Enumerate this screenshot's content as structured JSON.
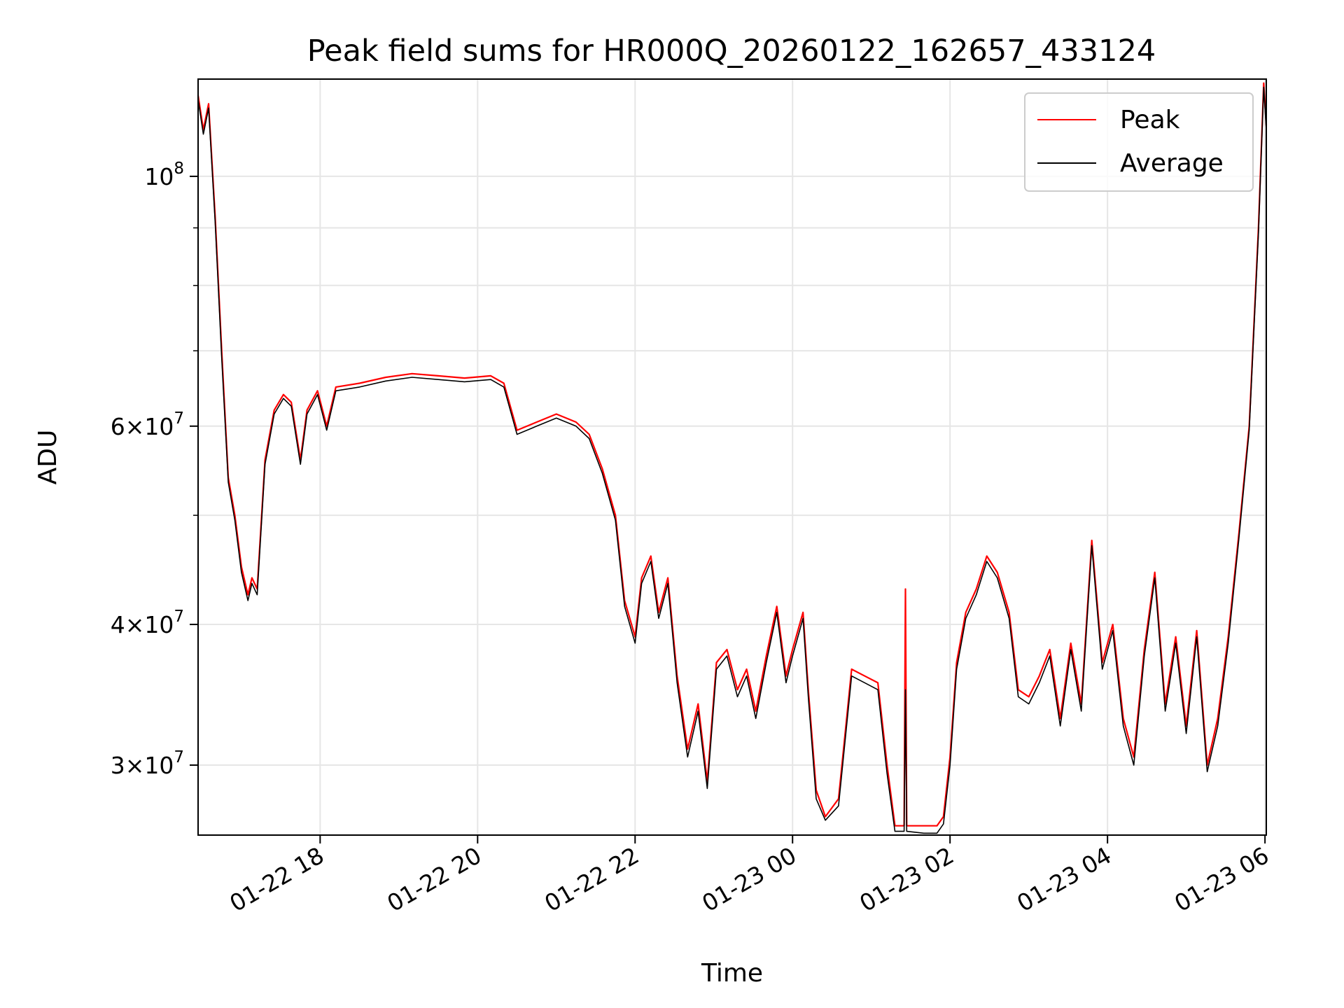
{
  "chart_data": {
    "type": "line",
    "title": "Peak field sums for HR000Q_20260122_162657_433124",
    "xlabel": "Time",
    "ylabel": "ADU",
    "y_scale": "log",
    "ylim": [
      26000000,
      122000000
    ],
    "xlim": [
      "2026-01-22 16:27",
      "2026-01-23 06:01"
    ],
    "grid": true,
    "legend_position": "top-right",
    "x_ticks": [
      {
        "value": "2026-01-22 18:00",
        "label": "01-22 18"
      },
      {
        "value": "2026-01-22 20:00",
        "label": "01-22 20"
      },
      {
        "value": "2026-01-22 22:00",
        "label": "01-22 22"
      },
      {
        "value": "2026-01-23 00:00",
        "label": "01-23 00"
      },
      {
        "value": "2026-01-23 02:00",
        "label": "01-23 02"
      },
      {
        "value": "2026-01-23 04:00",
        "label": "01-23 04"
      },
      {
        "value": "2026-01-23 06:00",
        "label": "01-23 06"
      }
    ],
    "y_major_ticks": [
      {
        "value": 100000000,
        "mantissa": "",
        "base": "10",
        "exponent": "8"
      },
      {
        "value": 60000000,
        "mantissa": "6",
        "base": "10",
        "exponent": "7"
      },
      {
        "value": 40000000,
        "mantissa": "4",
        "base": "10",
        "exponent": "7"
      },
      {
        "value": 30000000,
        "mantissa": "3",
        "base": "10",
        "exponent": "7"
      }
    ],
    "y_minor_ticks": [
      50000000,
      70000000,
      80000000,
      90000000
    ],
    "series": [
      {
        "name": "Peak",
        "color": "#ff0000",
        "points": [
          [
            "2026-01-22 16:27",
            118000000
          ],
          [
            "2026-01-22 16:31",
            110000000
          ],
          [
            "2026-01-22 16:35",
            116000000
          ],
          [
            "2026-01-22 16:40",
            92000000
          ],
          [
            "2026-01-22 16:45",
            70000000
          ],
          [
            "2026-01-22 16:50",
            54000000
          ],
          [
            "2026-01-22 16:55",
            50000000
          ],
          [
            "2026-01-22 17:00",
            45000000
          ],
          [
            "2026-01-22 17:05",
            42500000
          ],
          [
            "2026-01-22 17:08",
            44000000
          ],
          [
            "2026-01-22 17:12",
            43000000
          ],
          [
            "2026-01-22 17:18",
            56000000
          ],
          [
            "2026-01-22 17:25",
            62000000
          ],
          [
            "2026-01-22 17:32",
            64000000
          ],
          [
            "2026-01-22 17:38",
            63000000
          ],
          [
            "2026-01-22 17:45",
            56000000
          ],
          [
            "2026-01-22 17:50",
            62000000
          ],
          [
            "2026-01-22 17:58",
            64500000
          ],
          [
            "2026-01-22 18:05",
            60000000
          ],
          [
            "2026-01-22 18:12",
            65000000
          ],
          [
            "2026-01-22 18:30",
            65500000
          ],
          [
            "2026-01-22 18:50",
            66300000
          ],
          [
            "2026-01-22 19:10",
            66800000
          ],
          [
            "2026-01-22 19:30",
            66500000
          ],
          [
            "2026-01-22 19:50",
            66200000
          ],
          [
            "2026-01-22 20:10",
            66500000
          ],
          [
            "2026-01-22 20:20",
            65500000
          ],
          [
            "2026-01-22 20:30",
            59500000
          ],
          [
            "2026-01-22 20:45",
            60500000
          ],
          [
            "2026-01-22 21:00",
            61500000
          ],
          [
            "2026-01-22 21:15",
            60500000
          ],
          [
            "2026-01-22 21:25",
            59000000
          ],
          [
            "2026-01-22 21:35",
            55000000
          ],
          [
            "2026-01-22 21:45",
            50000000
          ],
          [
            "2026-01-22 21:52",
            42000000
          ],
          [
            "2026-01-22 22:00",
            39000000
          ],
          [
            "2026-01-22 22:05",
            44000000
          ],
          [
            "2026-01-22 22:12",
            46000000
          ],
          [
            "2026-01-22 22:18",
            41000000
          ],
          [
            "2026-01-22 22:25",
            44000000
          ],
          [
            "2026-01-22 22:32",
            36000000
          ],
          [
            "2026-01-22 22:40",
            31000000
          ],
          [
            "2026-01-22 22:48",
            34000000
          ],
          [
            "2026-01-22 22:55",
            29000000
          ],
          [
            "2026-01-22 23:02",
            37000000
          ],
          [
            "2026-01-22 23:10",
            38000000
          ],
          [
            "2026-01-22 23:18",
            35000000
          ],
          [
            "2026-01-22 23:25",
            36500000
          ],
          [
            "2026-01-22 23:32",
            33500000
          ],
          [
            "2026-01-22 23:40",
            37500000
          ],
          [
            "2026-01-22 23:48",
            41500000
          ],
          [
            "2026-01-22 23:55",
            36000000
          ],
          [
            "2026-01-23 00:00",
            38000000
          ],
          [
            "2026-01-23 00:08",
            41000000
          ],
          [
            "2026-01-23 00:12",
            35000000
          ],
          [
            "2026-01-23 00:18",
            28500000
          ],
          [
            "2026-01-23 00:25",
            27000000
          ],
          [
            "2026-01-23 00:35",
            28000000
          ],
          [
            "2026-01-23 00:45",
            36500000
          ],
          [
            "2026-01-23 00:55",
            36000000
          ],
          [
            "2026-01-23 01:05",
            35500000
          ],
          [
            "2026-01-23 01:12",
            30000000
          ],
          [
            "2026-01-23 01:18",
            26500000
          ],
          [
            "2026-01-23 01:25",
            26500000
          ],
          [
            "2026-01-23 01:26",
            43000000
          ],
          [
            "2026-01-23 01:27",
            26500000
          ],
          [
            "2026-01-23 01:40",
            26500000
          ],
          [
            "2026-01-23 01:50",
            26500000
          ],
          [
            "2026-01-23 01:55",
            27000000
          ],
          [
            "2026-01-23 02:00",
            30500000
          ],
          [
            "2026-01-23 02:05",
            37000000
          ],
          [
            "2026-01-23 02:12",
            41000000
          ],
          [
            "2026-01-23 02:20",
            43000000
          ],
          [
            "2026-01-23 02:28",
            46000000
          ],
          [
            "2026-01-23 02:36",
            44500000
          ],
          [
            "2026-01-23 02:45",
            41000000
          ],
          [
            "2026-01-23 02:52",
            35000000
          ],
          [
            "2026-01-23 03:00",
            34500000
          ],
          [
            "2026-01-23 03:08",
            36000000
          ],
          [
            "2026-01-23 03:16",
            38000000
          ],
          [
            "2026-01-23 03:24",
            33000000
          ],
          [
            "2026-01-23 03:32",
            38500000
          ],
          [
            "2026-01-23 03:40",
            34000000
          ],
          [
            "2026-01-23 03:48",
            47500000
          ],
          [
            "2026-01-23 03:56",
            37000000
          ],
          [
            "2026-01-23 04:04",
            40000000
          ],
          [
            "2026-01-23 04:12",
            33000000
          ],
          [
            "2026-01-23 04:20",
            30500000
          ],
          [
            "2026-01-23 04:28",
            38000000
          ],
          [
            "2026-01-23 04:36",
            44500000
          ],
          [
            "2026-01-23 04:44",
            34000000
          ],
          [
            "2026-01-23 04:52",
            39000000
          ],
          [
            "2026-01-23 05:00",
            32500000
          ],
          [
            "2026-01-23 05:08",
            39500000
          ],
          [
            "2026-01-23 05:16",
            30000000
          ],
          [
            "2026-01-23 05:24",
            33000000
          ],
          [
            "2026-01-23 05:32",
            39000000
          ],
          [
            "2026-01-23 05:40",
            48000000
          ],
          [
            "2026-01-23 05:48",
            60000000
          ],
          [
            "2026-01-23 05:55",
            90000000
          ],
          [
            "2026-01-23 05:59",
            121000000
          ],
          [
            "2026-01-23 06:01",
            111000000
          ]
        ]
      },
      {
        "name": "Average",
        "color": "#000000",
        "points": [
          [
            "2026-01-22 16:27",
            117000000
          ],
          [
            "2026-01-22 16:31",
            109000000
          ],
          [
            "2026-01-22 16:35",
            115000000
          ],
          [
            "2026-01-22 16:40",
            91000000
          ],
          [
            "2026-01-22 16:45",
            69000000
          ],
          [
            "2026-01-22 16:50",
            53500000
          ],
          [
            "2026-01-22 16:55",
            49500000
          ],
          [
            "2026-01-22 17:00",
            44500000
          ],
          [
            "2026-01-22 17:05",
            42000000
          ],
          [
            "2026-01-22 17:08",
            43500000
          ],
          [
            "2026-01-22 17:12",
            42500000
          ],
          [
            "2026-01-22 17:18",
            55500000
          ],
          [
            "2026-01-22 17:25",
            61500000
          ],
          [
            "2026-01-22 17:32",
            63500000
          ],
          [
            "2026-01-22 17:38",
            62500000
          ],
          [
            "2026-01-22 17:45",
            55500000
          ],
          [
            "2026-01-22 17:50",
            61500000
          ],
          [
            "2026-01-22 17:58",
            64000000
          ],
          [
            "2026-01-22 18:05",
            59500000
          ],
          [
            "2026-01-22 18:12",
            64500000
          ],
          [
            "2026-01-22 18:30",
            65000000
          ],
          [
            "2026-01-22 18:50",
            65800000
          ],
          [
            "2026-01-22 19:10",
            66300000
          ],
          [
            "2026-01-22 19:30",
            66000000
          ],
          [
            "2026-01-22 19:50",
            65700000
          ],
          [
            "2026-01-22 20:10",
            66000000
          ],
          [
            "2026-01-22 20:20",
            65000000
          ],
          [
            "2026-01-22 20:30",
            59000000
          ],
          [
            "2026-01-22 20:45",
            60000000
          ],
          [
            "2026-01-22 21:00",
            61000000
          ],
          [
            "2026-01-22 21:15",
            60000000
          ],
          [
            "2026-01-22 21:25",
            58500000
          ],
          [
            "2026-01-22 21:35",
            54500000
          ],
          [
            "2026-01-22 21:45",
            49500000
          ],
          [
            "2026-01-22 21:52",
            41500000
          ],
          [
            "2026-01-22 22:00",
            38500000
          ],
          [
            "2026-01-22 22:05",
            43500000
          ],
          [
            "2026-01-22 22:12",
            45500000
          ],
          [
            "2026-01-22 22:18",
            40500000
          ],
          [
            "2026-01-22 22:25",
            43500000
          ],
          [
            "2026-01-22 22:32",
            35500000
          ],
          [
            "2026-01-22 22:40",
            30500000
          ],
          [
            "2026-01-22 22:48",
            33500000
          ],
          [
            "2026-01-22 22:55",
            28600000
          ],
          [
            "2026-01-22 23:02",
            36500000
          ],
          [
            "2026-01-22 23:10",
            37500000
          ],
          [
            "2026-01-22 23:18",
            34500000
          ],
          [
            "2026-01-22 23:25",
            36000000
          ],
          [
            "2026-01-22 23:32",
            33000000
          ],
          [
            "2026-01-22 23:40",
            37000000
          ],
          [
            "2026-01-22 23:48",
            41000000
          ],
          [
            "2026-01-22 23:55",
            35500000
          ],
          [
            "2026-01-23 00:00",
            37500000
          ],
          [
            "2026-01-23 00:08",
            40500000
          ],
          [
            "2026-01-23 00:12",
            34500000
          ],
          [
            "2026-01-23 00:18",
            28000000
          ],
          [
            "2026-01-23 00:25",
            26800000
          ],
          [
            "2026-01-23 00:35",
            27600000
          ],
          [
            "2026-01-23 00:45",
            36000000
          ],
          [
            "2026-01-23 00:55",
            35500000
          ],
          [
            "2026-01-23 01:05",
            35000000
          ],
          [
            "2026-01-23 01:12",
            29500000
          ],
          [
            "2026-01-23 01:18",
            26200000
          ],
          [
            "2026-01-23 01:25",
            26200000
          ],
          [
            "2026-01-23 01:26",
            35000000
          ],
          [
            "2026-01-23 01:27",
            26200000
          ],
          [
            "2026-01-23 01:40",
            26100000
          ],
          [
            "2026-01-23 01:50",
            26100000
          ],
          [
            "2026-01-23 01:55",
            26600000
          ],
          [
            "2026-01-23 02:00",
            30000000
          ],
          [
            "2026-01-23 02:05",
            36500000
          ],
          [
            "2026-01-23 02:12",
            40500000
          ],
          [
            "2026-01-23 02:20",
            42500000
          ],
          [
            "2026-01-23 02:28",
            45500000
          ],
          [
            "2026-01-23 02:36",
            44000000
          ],
          [
            "2026-01-23 02:45",
            40500000
          ],
          [
            "2026-01-23 02:52",
            34500000
          ],
          [
            "2026-01-23 03:00",
            34000000
          ],
          [
            "2026-01-23 03:08",
            35500000
          ],
          [
            "2026-01-23 03:16",
            37500000
          ],
          [
            "2026-01-23 03:24",
            32500000
          ],
          [
            "2026-01-23 03:32",
            38000000
          ],
          [
            "2026-01-23 03:40",
            33500000
          ],
          [
            "2026-01-23 03:48",
            47000000
          ],
          [
            "2026-01-23 03:56",
            36500000
          ],
          [
            "2026-01-23 04:04",
            39500000
          ],
          [
            "2026-01-23 04:12",
            32500000
          ],
          [
            "2026-01-23 04:20",
            30000000
          ],
          [
            "2026-01-23 04:28",
            37500000
          ],
          [
            "2026-01-23 04:36",
            44000000
          ],
          [
            "2026-01-23 04:44",
            33500000
          ],
          [
            "2026-01-23 04:52",
            38500000
          ],
          [
            "2026-01-23 05:00",
            32000000
          ],
          [
            "2026-01-23 05:08",
            39000000
          ],
          [
            "2026-01-23 05:16",
            29600000
          ],
          [
            "2026-01-23 05:24",
            32500000
          ],
          [
            "2026-01-23 05:32",
            38500000
          ],
          [
            "2026-01-23 05:40",
            47500000
          ],
          [
            "2026-01-23 05:48",
            59500000
          ],
          [
            "2026-01-23 05:55",
            89000000
          ],
          [
            "2026-01-23 05:59",
            120000000
          ],
          [
            "2026-01-23 06:01",
            110000000
          ]
        ]
      }
    ]
  }
}
